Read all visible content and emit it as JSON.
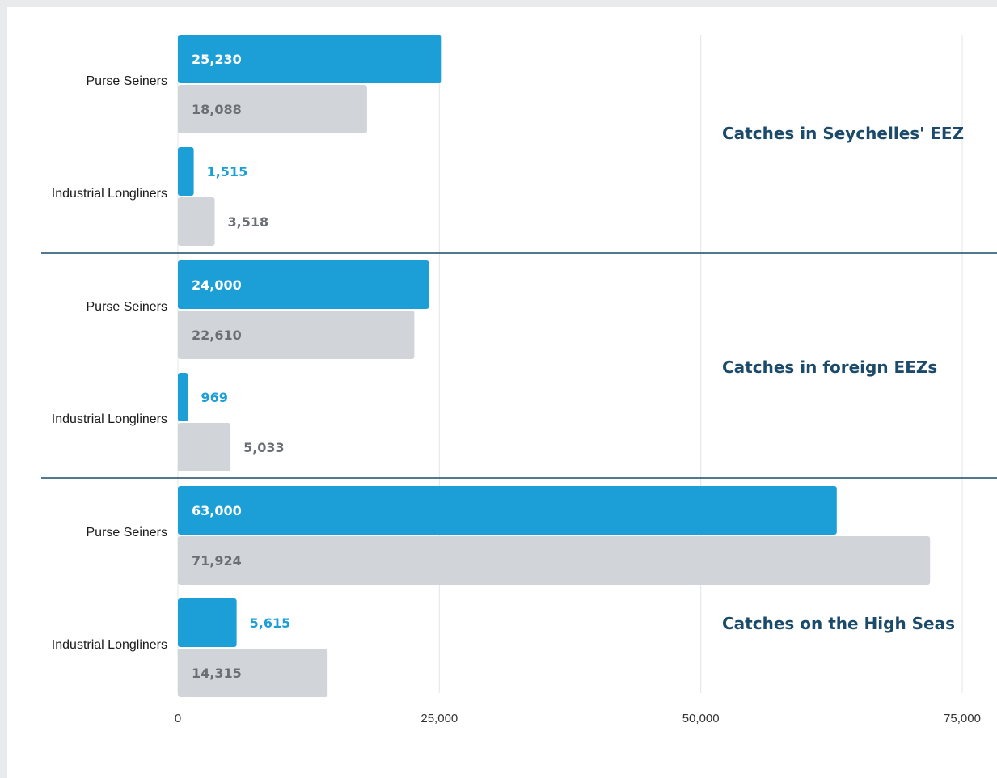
{
  "chart_data": {
    "type": "bar",
    "orientation": "horizontal",
    "xlim": [
      0,
      75000
    ],
    "x_ticks": [
      "0",
      "25,000",
      "50,000",
      "75,000"
    ],
    "x_tick_values": [
      0,
      25000,
      50000,
      75000
    ],
    "grid": true,
    "colors": {
      "primary": "#1c9fd6",
      "secondary": "#d1d5d9",
      "title": "#1b4a6b",
      "divider": "#1b4a6b",
      "secondary_label": "#6b6f73"
    },
    "sections": [
      {
        "title": "Catches in Seychelles' EEZ",
        "groups": [
          {
            "category": "Purse Seiners",
            "values": [
              25230,
              18088
            ],
            "labels": [
              "25,230",
              "18,088"
            ]
          },
          {
            "category": "Industrial Longliners",
            "values": [
              1515,
              3518
            ],
            "labels": [
              "1,515",
              "3,518"
            ]
          }
        ]
      },
      {
        "title": "Catches in foreign EEZs",
        "groups": [
          {
            "category": "Purse Seiners",
            "values": [
              24000,
              22610
            ],
            "labels": [
              "24,000",
              "22,610"
            ]
          },
          {
            "category": "Industrial Longliners",
            "values": [
              969,
              5033
            ],
            "labels": [
              "969",
              "5,033"
            ]
          }
        ]
      },
      {
        "title": "Catches on the High Seas",
        "groups": [
          {
            "category": "Purse Seiners",
            "values": [
              63000,
              71924
            ],
            "labels": [
              "63,000",
              "71,924"
            ]
          },
          {
            "category": "Industrial Longliners",
            "values": [
              5615,
              14315
            ],
            "labels": [
              "5,615",
              "14,315"
            ]
          }
        ]
      }
    ]
  }
}
